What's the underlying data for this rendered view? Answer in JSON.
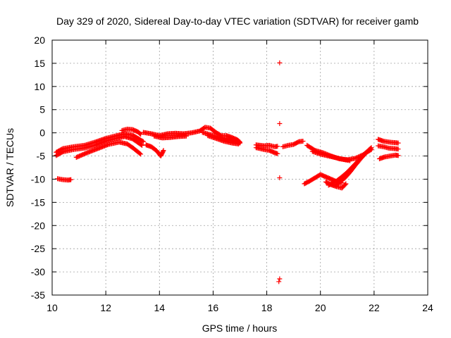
{
  "chart_data": {
    "type": "scatter",
    "title": "Day 329 of 2020, Sidereal Day-to-day VTEC variation (SDTVAR) for receiver gamb",
    "xlabel": "GPS time / hours",
    "ylabel": "SDTVAR / TECUs",
    "xlim": [
      10,
      24
    ],
    "ylim": [
      -35,
      20
    ],
    "xticks": [
      10,
      12,
      14,
      16,
      18,
      20,
      22,
      24
    ],
    "yticks": [
      20,
      15,
      10,
      5,
      0,
      -5,
      -10,
      -15,
      -20,
      -25,
      -30,
      -35
    ],
    "grid": true,
    "marker": "+",
    "color": "#ff0000",
    "tracks": [
      {
        "name": "arc-a-upper",
        "points": [
          [
            10.15,
            -4.2
          ],
          [
            10.4,
            -3.4
          ],
          [
            10.8,
            -3.0
          ],
          [
            11.2,
            -2.7
          ],
          [
            11.6,
            -2.0
          ],
          [
            12.0,
            -1.2
          ],
          [
            12.4,
            -0.6
          ],
          [
            12.7,
            -0.2
          ],
          [
            13.0,
            -0.5
          ],
          [
            13.2,
            -1.2
          ],
          [
            13.4,
            -1.9
          ]
        ]
      },
      {
        "name": "arc-a-mid",
        "points": [
          [
            10.15,
            -4.9
          ],
          [
            10.4,
            -4.1
          ],
          [
            10.8,
            -3.6
          ],
          [
            11.2,
            -3.3
          ],
          [
            11.6,
            -2.7
          ],
          [
            12.0,
            -1.8
          ],
          [
            12.4,
            -1.2
          ],
          [
            12.7,
            -0.8
          ],
          [
            13.0,
            -1.3
          ],
          [
            13.2,
            -2.1
          ],
          [
            13.35,
            -2.7
          ]
        ]
      },
      {
        "name": "arc-a-lower",
        "points": [
          [
            10.9,
            -5.3
          ],
          [
            11.3,
            -4.3
          ],
          [
            11.7,
            -3.4
          ],
          [
            12.1,
            -2.5
          ],
          [
            12.5,
            -2.0
          ],
          [
            12.8,
            -2.4
          ],
          [
            13.0,
            -3.2
          ],
          [
            13.15,
            -3.9
          ],
          [
            13.3,
            -4.6
          ]
        ]
      },
      {
        "name": "arc-a-top",
        "points": [
          [
            12.6,
            0.5
          ],
          [
            12.8,
            0.8
          ],
          [
            13.0,
            0.7
          ],
          [
            13.2,
            0.2
          ],
          [
            13.3,
            -0.3
          ]
        ]
      },
      {
        "name": "arc-b",
        "points": [
          [
            10.2,
            -9.9
          ],
          [
            10.4,
            -10.1
          ],
          [
            10.6,
            -10.2
          ],
          [
            10.7,
            -10.1
          ]
        ]
      },
      {
        "name": "arc-c-upper",
        "points": [
          [
            13.4,
            0.1
          ],
          [
            13.7,
            -0.2
          ],
          [
            14.0,
            -0.6
          ],
          [
            14.3,
            -0.2
          ],
          [
            14.6,
            -0.1
          ],
          [
            14.9,
            -0.2
          ]
        ]
      },
      {
        "name": "arc-c-lower",
        "points": [
          [
            13.8,
            -0.7
          ],
          [
            14.1,
            -1.1
          ],
          [
            14.4,
            -1.0
          ],
          [
            14.7,
            -0.8
          ],
          [
            15.0,
            -0.7
          ]
        ]
      },
      {
        "name": "arc-c-drop",
        "points": [
          [
            13.5,
            -2.6
          ],
          [
            13.7,
            -3.0
          ],
          [
            13.9,
            -3.9
          ],
          [
            14.05,
            -5.0
          ],
          [
            14.15,
            -3.8
          ]
        ]
      },
      {
        "name": "arc-d",
        "points": [
          [
            14.9,
            -0.2
          ],
          [
            15.2,
            0.0
          ],
          [
            15.5,
            0.4
          ],
          [
            15.7,
            1.2
          ],
          [
            15.9,
            1.0
          ],
          [
            16.1,
            0.1
          ],
          [
            16.3,
            -0.6
          ],
          [
            16.5,
            -0.6
          ],
          [
            16.7,
            -1.0
          ],
          [
            16.9,
            -1.5
          ],
          [
            17.0,
            -2.0
          ]
        ]
      },
      {
        "name": "arc-d2",
        "points": [
          [
            15.6,
            0.1
          ],
          [
            15.9,
            -0.4
          ],
          [
            16.2,
            -0.9
          ],
          [
            16.5,
            -1.3
          ],
          [
            16.8,
            -1.8
          ],
          [
            17.0,
            -2.2
          ]
        ]
      },
      {
        "name": "arc-d3",
        "points": [
          [
            15.8,
            -0.6
          ],
          [
            16.1,
            -1.2
          ],
          [
            16.4,
            -1.8
          ],
          [
            16.7,
            -2.2
          ],
          [
            16.95,
            -2.4
          ]
        ]
      },
      {
        "name": "arc-e",
        "points": [
          [
            17.6,
            -2.6
          ],
          [
            17.9,
            -2.8
          ],
          [
            18.1,
            -2.7
          ],
          [
            18.3,
            -3.0
          ],
          [
            18.4,
            -2.9
          ]
        ]
      },
      {
        "name": "arc-e2",
        "points": [
          [
            17.6,
            -3.2
          ],
          [
            17.9,
            -3.6
          ],
          [
            18.1,
            -3.8
          ],
          [
            18.3,
            -4.3
          ],
          [
            18.4,
            -4.5
          ]
        ]
      },
      {
        "name": "arc-f",
        "points": [
          [
            18.6,
            -3.0
          ],
          [
            18.8,
            -2.7
          ],
          [
            19.0,
            -2.5
          ],
          [
            19.2,
            -1.9
          ],
          [
            19.35,
            -1.8
          ]
        ]
      },
      {
        "name": "arc-g",
        "points": [
          [
            19.5,
            -2.7
          ],
          [
            19.8,
            -3.8
          ],
          [
            20.1,
            -4.3
          ],
          [
            20.4,
            -5.0
          ],
          [
            20.7,
            -5.6
          ],
          [
            21.0,
            -5.8
          ],
          [
            21.3,
            -5.5
          ],
          [
            21.6,
            -4.7
          ],
          [
            21.8,
            -3.8
          ]
        ]
      },
      {
        "name": "arc-g2",
        "points": [
          [
            19.7,
            -4.0
          ],
          [
            20.0,
            -4.6
          ],
          [
            20.3,
            -5.0
          ],
          [
            20.6,
            -5.4
          ],
          [
            20.9,
            -5.8
          ],
          [
            21.1,
            -6.0
          ]
        ]
      },
      {
        "name": "arc-h",
        "points": [
          [
            19.4,
            -11.0
          ],
          [
            19.6,
            -10.4
          ],
          [
            19.8,
            -9.7
          ],
          [
            20.0,
            -9.0
          ],
          [
            20.2,
            -9.5
          ],
          [
            20.4,
            -10.0
          ],
          [
            20.6,
            -10.5
          ],
          [
            20.8,
            -10.8
          ]
        ]
      },
      {
        "name": "arc-h2",
        "points": [
          [
            20.2,
            -10.6
          ],
          [
            20.4,
            -11.2
          ],
          [
            20.6,
            -11.6
          ],
          [
            20.8,
            -11.9
          ],
          [
            20.95,
            -11.0
          ]
        ]
      },
      {
        "name": "arc-h3",
        "points": [
          [
            20.3,
            -11.3
          ],
          [
            20.6,
            -10.4
          ],
          [
            20.8,
            -9.5
          ],
          [
            21.0,
            -8.5
          ],
          [
            21.2,
            -7.3
          ],
          [
            21.4,
            -6.1
          ],
          [
            21.6,
            -4.9
          ],
          [
            21.8,
            -3.7
          ],
          [
            21.9,
            -3.2
          ]
        ]
      },
      {
        "name": "arc-h4",
        "points": [
          [
            20.6,
            -11.2
          ],
          [
            20.9,
            -9.8
          ],
          [
            21.1,
            -8.5
          ],
          [
            21.3,
            -7.0
          ],
          [
            21.5,
            -5.6
          ],
          [
            21.7,
            -4.3
          ],
          [
            21.9,
            -3.6
          ]
        ]
      },
      {
        "name": "arc-i-top",
        "points": [
          [
            22.15,
            -1.4
          ],
          [
            22.35,
            -1.8
          ],
          [
            22.55,
            -2.0
          ],
          [
            22.75,
            -2.1
          ],
          [
            22.9,
            -2.2
          ]
        ]
      },
      {
        "name": "arc-i-mid",
        "points": [
          [
            22.15,
            -2.8
          ],
          [
            22.35,
            -3.0
          ],
          [
            22.55,
            -3.3
          ],
          [
            22.75,
            -3.4
          ],
          [
            22.9,
            -3.5
          ]
        ]
      },
      {
        "name": "arc-i-low",
        "points": [
          [
            22.2,
            -5.6
          ],
          [
            22.4,
            -5.2
          ],
          [
            22.6,
            -5.0
          ],
          [
            22.8,
            -4.8
          ],
          [
            22.9,
            -4.9
          ]
        ]
      }
    ],
    "isolated_points": [
      {
        "name": "outlier-top",
        "x": 18.48,
        "y": 15.1
      },
      {
        "name": "outlier-a",
        "x": 18.48,
        "y": 2.0
      },
      {
        "name": "outlier-b",
        "x": 18.48,
        "y": -9.7
      },
      {
        "name": "outlier-c",
        "x": 18.48,
        "y": -31.5
      },
      {
        "name": "outlier-d",
        "x": 18.45,
        "y": -32.1
      }
    ]
  }
}
